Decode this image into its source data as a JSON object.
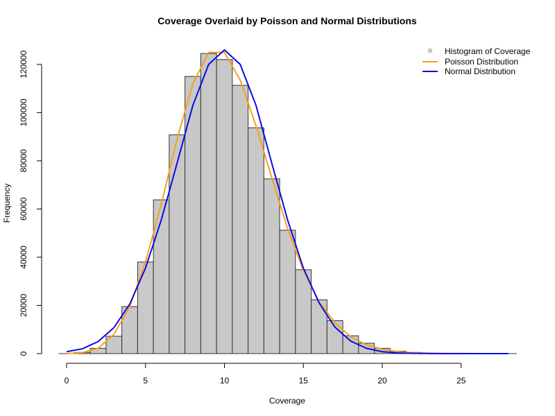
{
  "chart_data": {
    "type": "histogram",
    "title": "Coverage Overlaid by Poisson and Normal Distributions",
    "xlabel": "Coverage",
    "ylabel": "Frequency",
    "xlim": [
      -0.5,
      28.5
    ],
    "ylim": [
      0,
      126000
    ],
    "x_ticks": [
      0,
      5,
      10,
      15,
      20,
      25
    ],
    "y_ticks": [
      0,
      20000,
      40000,
      60000,
      80000,
      100000,
      120000
    ],
    "grid": false,
    "legend_position": "top-right",
    "colors": {
      "histogram_fill": "#c8c8c8",
      "histogram_border": "#333333",
      "poisson": "#f5a01a",
      "normal": "#0a0ae6"
    },
    "legend": [
      {
        "label": "Histogram of Coverage",
        "type": "square"
      },
      {
        "label": "Poisson Distribution",
        "type": "line"
      },
      {
        "label": "Normal Distribution",
        "type": "line"
      }
    ],
    "histogram": {
      "bin_width": 1,
      "bin_centers": [
        0,
        1,
        2,
        3,
        4,
        5,
        6,
        7,
        8,
        9,
        10,
        11,
        12,
        13,
        14,
        15,
        16,
        17,
        18,
        19,
        20,
        21,
        22,
        23,
        24,
        25,
        26,
        27,
        28
      ],
      "counts": [
        0,
        500,
        2200,
        7200,
        19500,
        38000,
        63800,
        90800,
        115000,
        124500,
        122000,
        111300,
        93700,
        72500,
        51200,
        34800,
        22300,
        13700,
        7400,
        4300,
        2200,
        1000,
        500,
        200,
        100,
        50,
        20,
        10,
        5
      ]
    },
    "series": [
      {
        "name": "Poisson Distribution",
        "x": [
          0,
          1,
          2,
          3,
          4,
          5,
          6,
          7,
          8,
          9,
          10,
          11,
          12,
          13,
          14,
          15,
          16,
          17,
          18,
          19,
          20,
          21,
          22,
          23,
          24,
          25,
          26,
          27,
          28
        ],
        "values": [
          0,
          400,
          2200,
          8000,
          19500,
          38000,
          62000,
          89000,
          112000,
          125000,
          125000,
          113500,
          94500,
          73000,
          52000,
          34500,
          21500,
          12800,
          7000,
          3600,
          1800,
          800,
          350,
          150,
          60,
          20,
          8,
          3,
          1
        ]
      },
      {
        "name": "Normal Distribution",
        "x": [
          0,
          1,
          2,
          3,
          4,
          5,
          6,
          7,
          8,
          9,
          10,
          11,
          12,
          13,
          14,
          15,
          16,
          17,
          18,
          19,
          20,
          21,
          22,
          23,
          24,
          25,
          26,
          27,
          28
        ],
        "values": [
          800,
          2000,
          5000,
          10800,
          20500,
          35500,
          55500,
          79000,
          103000,
          120000,
          126000,
          120000,
          103000,
          79000,
          55500,
          35500,
          21000,
          11000,
          5200,
          2200,
          800,
          300,
          100,
          30,
          10,
          2,
          1,
          0,
          0
        ]
      }
    ]
  }
}
